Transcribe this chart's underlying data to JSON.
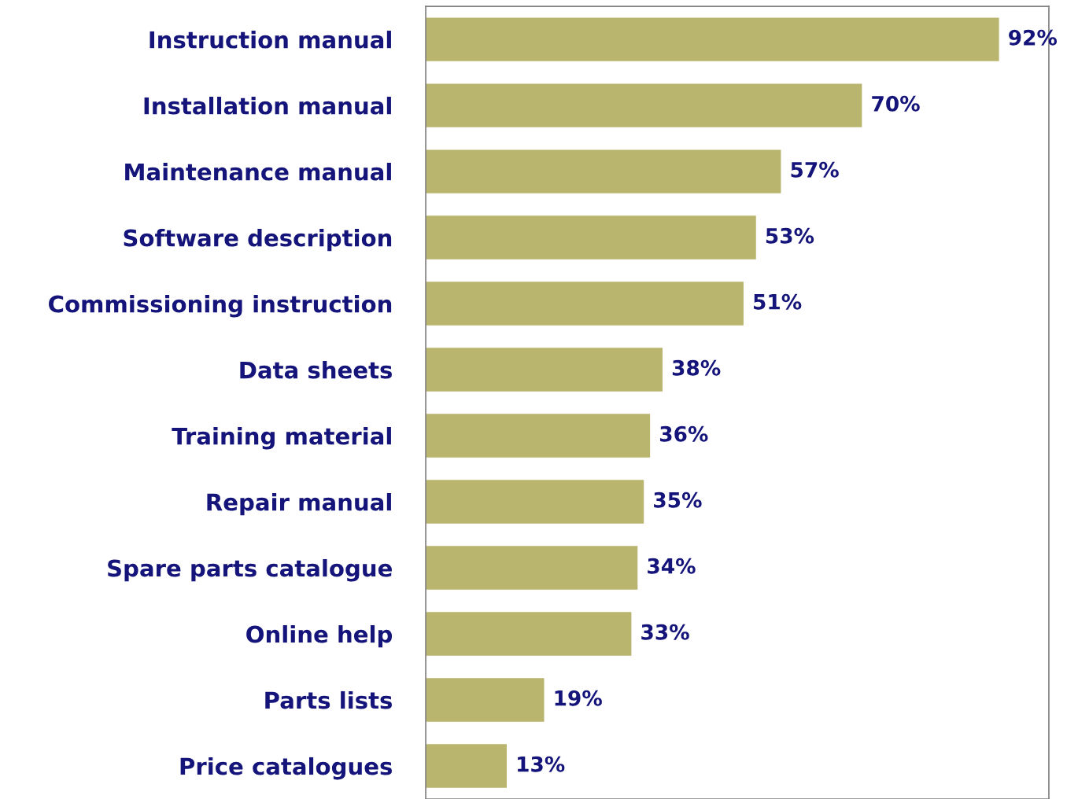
{
  "chart_data": {
    "type": "bar",
    "orientation": "horizontal",
    "categories": [
      "Instruction manual",
      "Installation manual",
      "Maintenance manual",
      "Software description",
      "Commissioning instruction",
      "Data sheets",
      "Training material",
      "Repair manual",
      "Spare parts catalogue",
      "Online help",
      "Parts lists",
      "Price catalogues"
    ],
    "values": [
      92,
      70,
      57,
      53,
      51,
      38,
      36,
      35,
      34,
      33,
      19,
      13
    ],
    "value_labels": [
      "92%",
      "70%",
      "57%",
      "53%",
      "51%",
      "38%",
      "36%",
      "35%",
      "34%",
      "33%",
      "19%",
      "13%"
    ],
    "color": "#b9b56e",
    "xlim": [
      0,
      100
    ],
    "tick_labels": "y",
    "grid": false,
    "legend": false
  }
}
